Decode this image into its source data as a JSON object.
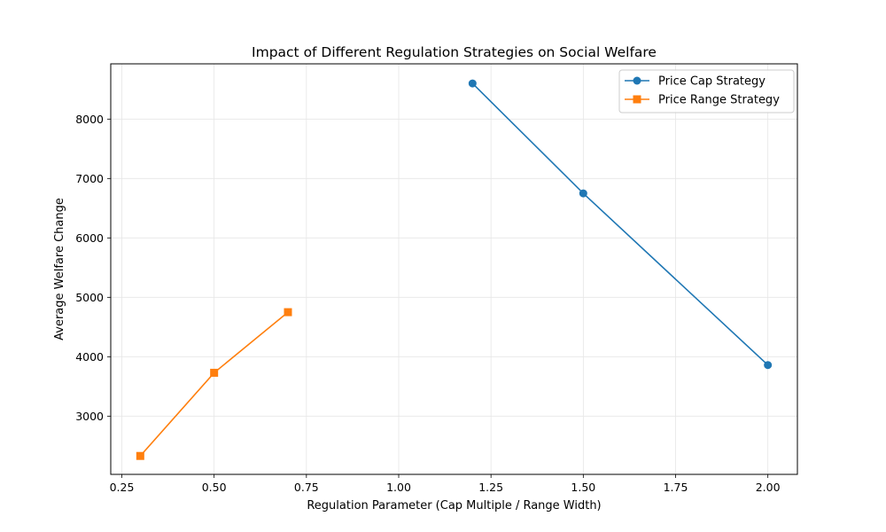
{
  "chart_data": {
    "type": "line",
    "title": "Impact of Different Regulation Strategies on Social Welfare",
    "xlabel": "Regulation Parameter (Cap Multiple / Range Width)",
    "ylabel": "Average Welfare Change",
    "xlim": [
      0.22,
      2.08
    ],
    "ylim": [
      2020,
      8930
    ],
    "xticks": [
      0.25,
      0.5,
      0.75,
      1.0,
      1.25,
      1.5,
      1.75,
      2.0
    ],
    "xtick_labels": [
      "0.25",
      "0.50",
      "0.75",
      "1.00",
      "1.25",
      "1.50",
      "1.75",
      "2.00"
    ],
    "yticks": [
      3000,
      4000,
      5000,
      6000,
      7000,
      8000
    ],
    "ytick_labels": [
      "3000",
      "4000",
      "5000",
      "6000",
      "7000",
      "8000"
    ],
    "grid": true,
    "legend_position": "top-right",
    "series": [
      {
        "name": "Price Cap Strategy",
        "color": "#1f77b4",
        "marker": "circle",
        "x": [
          1.2,
          1.5,
          2.0
        ],
        "y": [
          8600,
          6750,
          3860
        ]
      },
      {
        "name": "Price Range Strategy",
        "color": "#ff7f0e",
        "marker": "square",
        "x": [
          0.3,
          0.5,
          0.7
        ],
        "y": [
          2330,
          3730,
          4750
        ]
      }
    ]
  }
}
